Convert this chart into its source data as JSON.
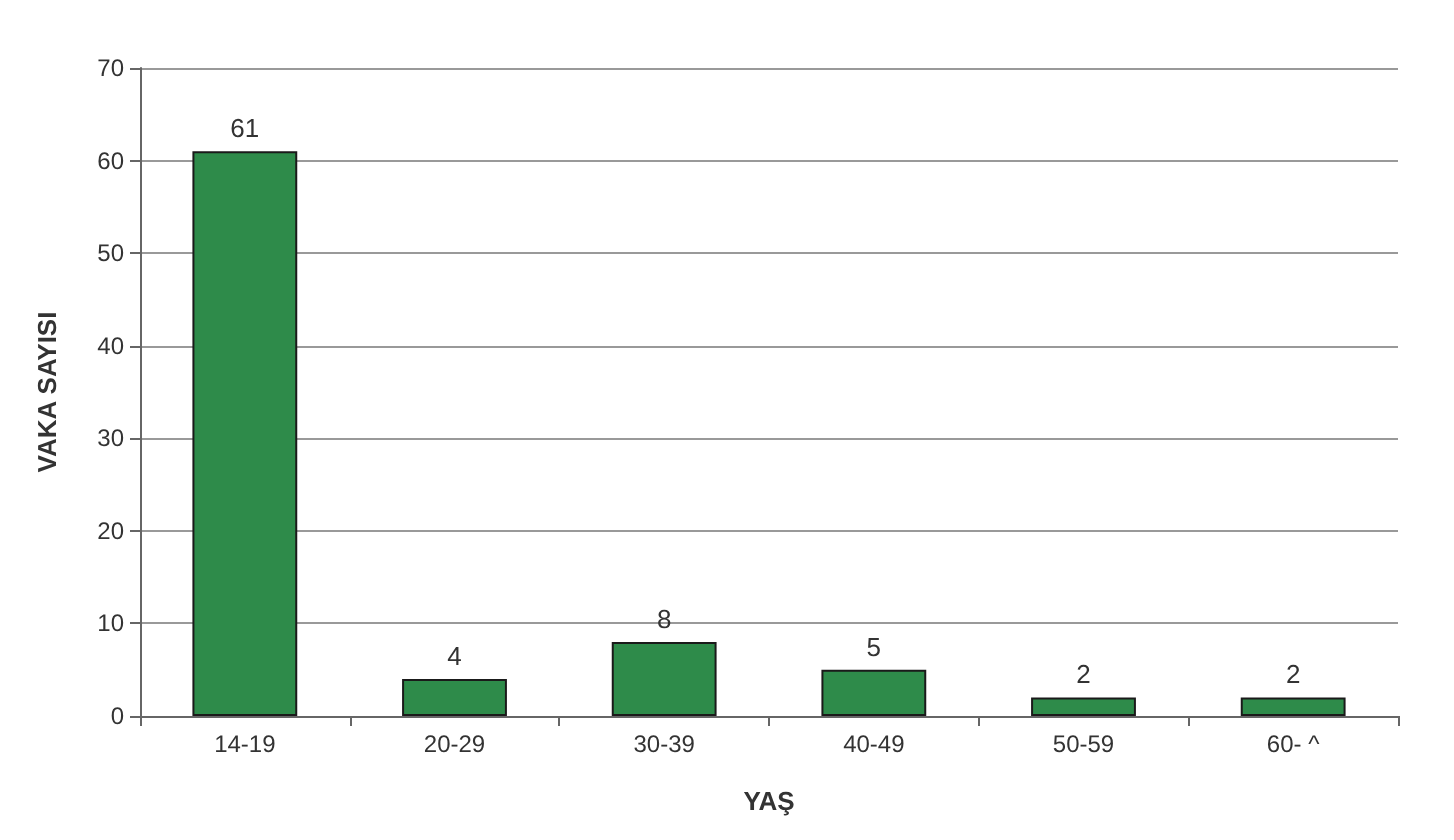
{
  "chart_data": {
    "type": "bar",
    "xlabel": "YAŞ",
    "ylabel": "VAKA SAYISI",
    "categories": [
      "14-19",
      "20-29",
      "30-39",
      "40-49",
      "50-59",
      "60- ^"
    ],
    "values": [
      61,
      4,
      8,
      5,
      2,
      2
    ],
    "color": "#2e8b4a",
    "ylim": [
      0,
      70
    ],
    "yticks": [
      0,
      10,
      20,
      30,
      40,
      50,
      60,
      70
    ],
    "grid": "y",
    "data_labels": true
  }
}
